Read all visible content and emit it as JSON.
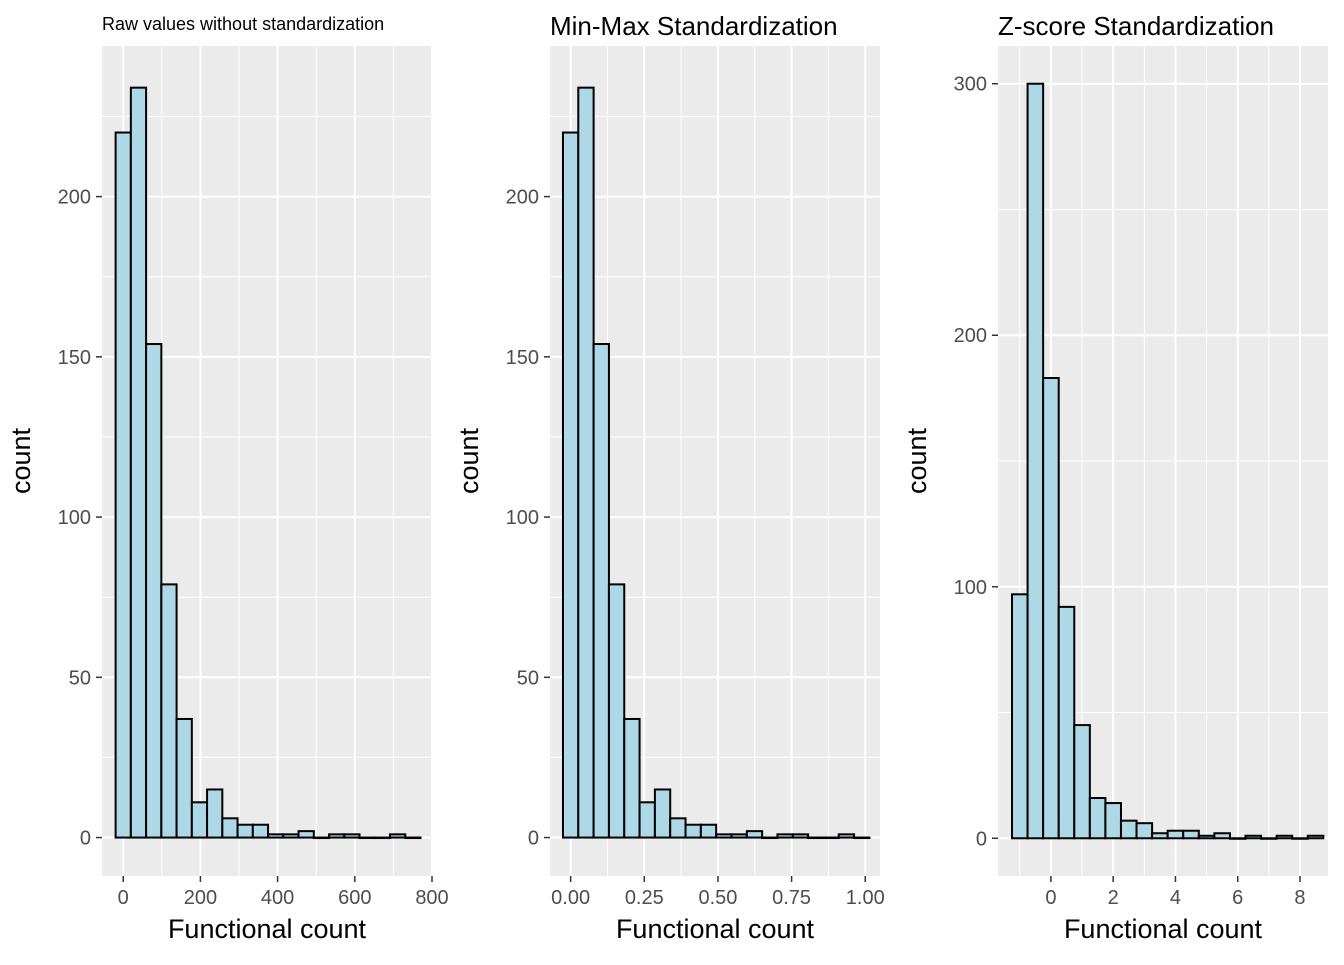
{
  "colors": {
    "bar_fill": "#add8e6",
    "bar_outline": "#000000",
    "panel_background": "#ebebeb",
    "grid": "#ffffff"
  },
  "chart_data": [
    {
      "type": "bar",
      "title": "Raw values without standardization",
      "xlabel": "Functional count",
      "ylabel": "count",
      "xlim": [
        -55,
        800
      ],
      "ylim": [
        -12,
        247
      ],
      "x_ticks": [
        0,
        200,
        400,
        600,
        800
      ],
      "x_tick_labels": [
        "0",
        "200",
        "400",
        "600",
        "800"
      ],
      "y_ticks": [
        0,
        50,
        100,
        150,
        200
      ],
      "y_tick_labels": [
        "0",
        "50",
        "100",
        "150",
        "200"
      ],
      "bin_width": 39.5,
      "bin_centers": [
        0,
        39.5,
        79,
        118.5,
        158,
        197.5,
        237,
        276.5,
        316,
        355.5,
        395,
        434.5,
        474,
        513.5,
        553,
        592.5,
        632,
        671.5,
        711,
        750.5
      ],
      "values": [
        220,
        234,
        154,
        79,
        37,
        11,
        15,
        6,
        4,
        4,
        1,
        1,
        2,
        0,
        1,
        1,
        0,
        0,
        1,
        0
      ],
      "grid": true
    },
    {
      "type": "bar",
      "title": "Min-Max Standardization",
      "xlabel": "Functional count",
      "ylabel": "count",
      "xlim": [
        -0.07,
        1.05
      ],
      "ylim": [
        -12,
        247
      ],
      "x_ticks": [
        0,
        0.25,
        0.5,
        0.75,
        1.0
      ],
      "x_tick_labels": [
        "0.00",
        "0.25",
        "0.50",
        "0.75",
        "1.00"
      ],
      "y_ticks": [
        0,
        50,
        100,
        150,
        200
      ],
      "y_tick_labels": [
        "0",
        "50",
        "100",
        "150",
        "200"
      ],
      "bin_width": 0.052,
      "bin_centers": [
        0,
        0.052,
        0.104,
        0.156,
        0.208,
        0.26,
        0.312,
        0.364,
        0.416,
        0.468,
        0.52,
        0.572,
        0.624,
        0.676,
        0.728,
        0.78,
        0.832,
        0.884,
        0.936,
        0.988
      ],
      "values": [
        220,
        234,
        154,
        79,
        37,
        11,
        15,
        6,
        4,
        4,
        1,
        1,
        2,
        0,
        1,
        1,
        0,
        0,
        1,
        0
      ],
      "grid": true
    },
    {
      "type": "bar",
      "title": "Z-score Standardization",
      "xlabel": "Functional count",
      "ylabel": "count",
      "xlim": [
        -1.7,
        8.9
      ],
      "ylim": [
        -15,
        315
      ],
      "x_ticks": [
        0,
        2,
        4,
        6,
        8
      ],
      "x_tick_labels": [
        "0",
        "2",
        "4",
        "6",
        "8"
      ],
      "y_ticks": [
        0,
        100,
        200,
        300
      ],
      "y_tick_labels": [
        "0",
        "100",
        "200",
        "300"
      ],
      "bin_width": 0.5,
      "bin_centers": [
        -1.0,
        -0.5,
        0,
        0.5,
        1.0,
        1.5,
        2.0,
        2.5,
        3.0,
        3.5,
        4.0,
        4.5,
        5.0,
        5.5,
        6.0,
        6.5,
        7.0,
        7.5,
        8.0,
        8.5
      ],
      "values": [
        97,
        300,
        183,
        92,
        45,
        16,
        14,
        7,
        6,
        2,
        3,
        3,
        1,
        2,
        0,
        1,
        0,
        1,
        0,
        1
      ],
      "grid": true
    }
  ]
}
